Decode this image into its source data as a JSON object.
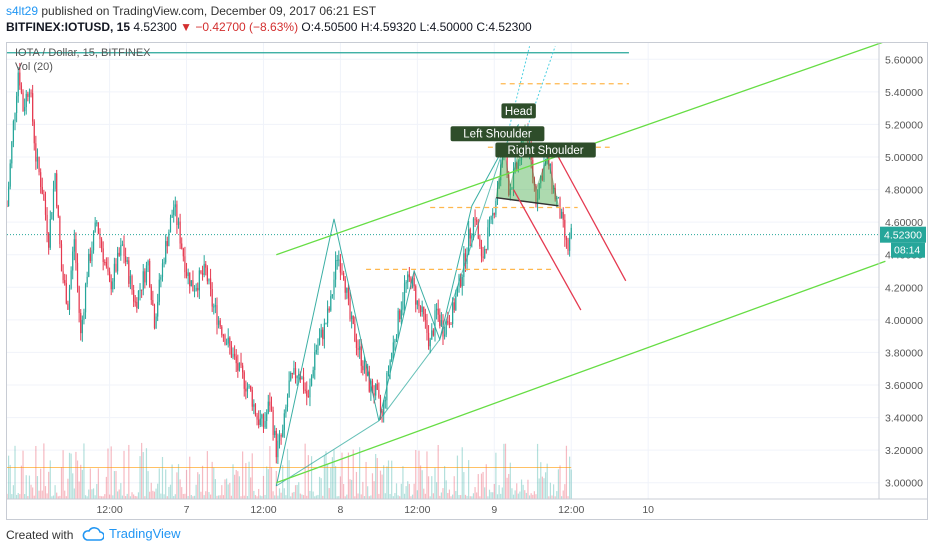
{
  "header": {
    "author": "s4lt29",
    "published_text": " published on TradingView.com, December 09, 2017 06:21 EST",
    "symbol": "BITFINEX:IOTUSD, 15",
    "last": "4.52300",
    "change_arrow": "▼",
    "change": "−0.42700 (−8.63%)",
    "o_label": "O:",
    "o": "4.50500",
    "h_label": "H:",
    "h": "4.59320",
    "l_label": "L:",
    "l": "4.50000",
    "c_label": "C:",
    "c": "4.52300"
  },
  "legend": {
    "title": "IOTA / Dollar, 15, BITFINEX",
    "vol": "Vol (20)"
  },
  "footer": {
    "created": "Created with",
    "brand": "TradingView",
    "logo_icon": "tradingview-cloud-icon"
  },
  "chart_data": {
    "type": "candlestick",
    "title": "IOTA / Dollar, 15, BITFINEX",
    "ylim": [
      2.9,
      5.7
    ],
    "yticks": [
      3.0,
      3.2,
      3.4,
      3.6,
      3.8,
      4.0,
      4.2,
      4.4,
      4.6,
      4.8,
      5.0,
      5.2,
      5.4,
      5.6
    ],
    "ytick_labels": [
      "3.00000",
      "3.20000",
      "3.40000",
      "3.60000",
      "3.80000",
      "4.00000",
      "4.20000",
      "4.40000",
      "4.60000",
      "4.80000",
      "5.00000",
      "5.20000",
      "5.40000",
      "5.60000"
    ],
    "xlim_hours": [
      -16,
      120
    ],
    "xticks": [
      {
        "label": "12:00",
        "hours": 0
      },
      {
        "label": "7",
        "hours": 12
      },
      {
        "label": "12:00",
        "hours": 24
      },
      {
        "label": "8",
        "hours": 36
      },
      {
        "label": "12:00",
        "hours": 48
      },
      {
        "label": "9",
        "hours": 60
      },
      {
        "label": "12:00",
        "hours": 72
      },
      {
        "label": "10",
        "hours": 84
      }
    ],
    "last_price": "4.52300",
    "countdown": "08:14",
    "price_path": [
      [
        -16,
        4.7
      ],
      [
        -15,
        5.2
      ],
      [
        -14.2,
        5.55
      ],
      [
        -13.5,
        5.3
      ],
      [
        -12.5,
        5.45
      ],
      [
        -11.5,
        5.0
      ],
      [
        -10.5,
        4.8
      ],
      [
        -9.5,
        4.5
      ],
      [
        -8.5,
        4.9
      ],
      [
        -7.5,
        4.3
      ],
      [
        -6.5,
        4.1
      ],
      [
        -5.5,
        4.5
      ],
      [
        -4.5,
        3.9
      ],
      [
        -3.5,
        4.3
      ],
      [
        -2,
        4.6
      ],
      [
        0,
        4.2
      ],
      [
        2,
        4.45
      ],
      [
        4,
        4.1
      ],
      [
        6,
        4.35
      ],
      [
        7,
        4.0
      ],
      [
        8.5,
        4.4
      ],
      [
        10,
        4.7
      ],
      [
        10.8,
        4.55
      ],
      [
        12,
        4.3
      ],
      [
        13,
        4.2
      ],
      [
        15,
        4.3
      ],
      [
        16,
        4.1
      ],
      [
        18,
        3.9
      ],
      [
        20,
        3.7
      ],
      [
        22,
        3.55
      ],
      [
        23,
        3.4
      ],
      [
        24,
        3.35
      ],
      [
        25,
        3.5
      ],
      [
        26,
        3.2
      ],
      [
        27,
        3.3
      ],
      [
        28,
        3.6
      ],
      [
        29.5,
        3.7
      ],
      [
        31,
        3.5
      ],
      [
        32,
        3.8
      ],
      [
        33.5,
        3.95
      ],
      [
        34.5,
        4.1
      ],
      [
        35.5,
        4.4
      ],
      [
        36.5,
        4.3
      ],
      [
        37.5,
        4.0
      ],
      [
        39,
        3.8
      ],
      [
        40.5,
        3.6
      ],
      [
        41.5,
        3.55
      ],
      [
        42.5,
        3.4
      ],
      [
        43.5,
        3.7
      ],
      [
        45,
        4.0
      ],
      [
        46,
        4.2
      ],
      [
        47,
        4.25
      ],
      [
        48,
        4.1
      ],
      [
        49,
        4.0
      ],
      [
        50,
        3.85
      ],
      [
        51,
        4.05
      ],
      [
        52,
        3.95
      ],
      [
        53.5,
        4.05
      ],
      [
        55,
        4.3
      ],
      [
        56,
        4.5
      ],
      [
        57,
        4.65
      ],
      [
        58,
        4.35
      ],
      [
        58.8,
        4.5
      ],
      [
        59.6,
        4.6
      ],
      [
        60.5,
        4.82
      ],
      [
        61.5,
        5.05
      ],
      [
        62.3,
        4.8
      ],
      [
        63.2,
        4.9
      ],
      [
        64,
        5.0
      ],
      [
        64.8,
        5.2
      ],
      [
        65.6,
        5.0
      ],
      [
        66.5,
        4.75
      ],
      [
        67.4,
        4.9
      ],
      [
        68.3,
        5.0
      ],
      [
        69.2,
        4.8
      ],
      [
        70,
        4.7
      ],
      [
        70.8,
        4.55
      ],
      [
        71.4,
        4.42
      ],
      [
        72,
        4.52
      ]
    ],
    "volume_scale": {
      "min": 0,
      "max": 100
    },
    "volume_avg": 35,
    "annotations": [
      {
        "kind": "label",
        "text": "Left Shoulder",
        "x": 60.5,
        "y": 5.14
      },
      {
        "kind": "label",
        "text": "Head",
        "x": 63.8,
        "y": 5.28
      },
      {
        "kind": "label",
        "text": "Right Shoulder",
        "x": 68.0,
        "y": 5.04
      },
      {
        "kind": "hline",
        "y": 5.64,
        "x0": -16,
        "x1": 81,
        "color": "#26a69a"
      },
      {
        "kind": "dashed",
        "y": 5.45,
        "x0": 61,
        "x1": 81,
        "color": "#ffb74d"
      },
      {
        "kind": "dashed",
        "y": 5.06,
        "x0": 59,
        "x1": 78,
        "color": "#ffb74d"
      },
      {
        "kind": "dashed",
        "y": 4.69,
        "x0": 50,
        "x1": 73,
        "color": "#ffb74d"
      },
      {
        "kind": "dashed",
        "y": 4.31,
        "x0": 40,
        "x1": 69,
        "color": "#ffb74d"
      },
      {
        "kind": "line",
        "p1": [
          26,
          4.4
        ],
        "p2": [
          121,
          5.71
        ],
        "color": "#66dd44"
      },
      {
        "kind": "line",
        "p1": [
          26,
          3.0
        ],
        "p2": [
          121,
          4.36
        ],
        "color": "#66dd44"
      },
      {
        "kind": "line",
        "p1": [
          70,
          5.0
        ],
        "p2": [
          80.5,
          4.24
        ],
        "color": "#e53950"
      },
      {
        "kind": "line",
        "p1": [
          63,
          4.8
        ],
        "p2": [
          73.5,
          4.06
        ],
        "color": "#e53950"
      }
    ],
    "harmonic_pattern": [
      [
        26,
        2.98
      ],
      [
        35,
        4.62
      ],
      [
        42,
        3.38
      ],
      [
        47.5,
        4.3
      ],
      [
        51.5,
        3.88
      ],
      [
        56.5,
        4.7
      ],
      [
        61.5,
        5.06
      ],
      [
        63.8,
        5.2
      ]
    ],
    "colors": {
      "up": "#26a69a",
      "down": "#e53950",
      "grid": "#f0f3fa",
      "pattern": "#4caf50"
    }
  }
}
